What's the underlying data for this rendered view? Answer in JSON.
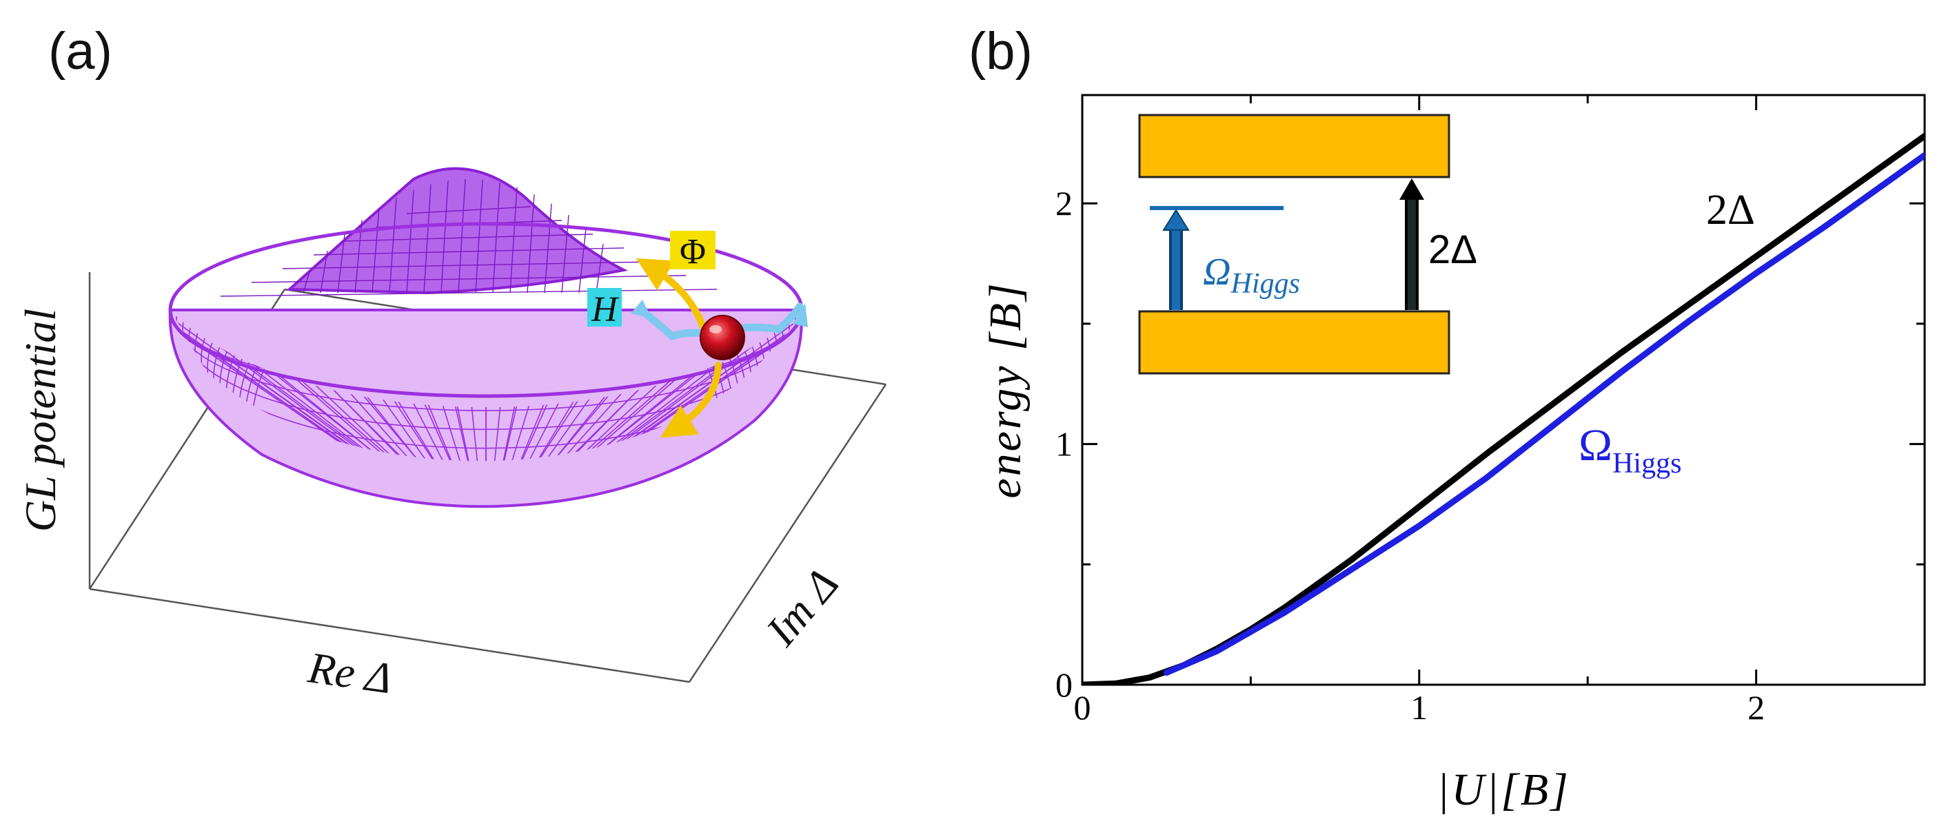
{
  "panel_a": {
    "label": "(a)",
    "z_axis_label": "GL potential",
    "x_axis_label": "Re Δ",
    "y_axis_label": "Im Δ",
    "phase_mode_label": "Φ",
    "amplitude_mode_label": "H",
    "colors": {
      "surface": "#9b30e0",
      "phase_arrow": "#f5c400",
      "phase_label_bg": "#f5e000",
      "amplitude_arrow": "#7fc8ee",
      "amplitude_label_bg": "#39d6e6",
      "ball": "#c8101a"
    }
  },
  "panel_b": {
    "label": "(b)",
    "inset": {
      "gap_label": "2Δ",
      "higgs_label_main": "Ω",
      "higgs_label_sub": "Higgs",
      "colors": {
        "band": "#ffbb00",
        "higgs": "#1a6db4",
        "gap_arrow": "#000000"
      }
    }
  },
  "chart_data": {
    "type": "line",
    "title": "",
    "xlabel": "|U|[B]",
    "ylabel": "energy [B]",
    "xlim": [
      0,
      2.5
    ],
    "ylim": [
      0,
      2.45
    ],
    "x_ticks": [
      0,
      1,
      2
    ],
    "y_ticks": [
      0,
      1,
      2
    ],
    "x_tick_labels": [
      "0",
      "1",
      "2"
    ],
    "y_tick_labels": [
      "0",
      "1",
      "2"
    ],
    "grid": false,
    "series": [
      {
        "name": "2Δ",
        "label_main": "2Δ",
        "label_sub": "",
        "color": "#000000",
        "x": [
          0,
          0.1,
          0.2,
          0.3,
          0.4,
          0.5,
          0.6,
          0.7,
          0.8,
          0.9,
          1.0,
          1.2,
          1.4,
          1.6,
          1.8,
          2.0,
          2.2,
          2.4,
          2.5
        ],
        "y": [
          0,
          0.005,
          0.03,
          0.08,
          0.15,
          0.23,
          0.32,
          0.42,
          0.52,
          0.63,
          0.74,
          0.96,
          1.17,
          1.38,
          1.58,
          1.78,
          1.98,
          2.18,
          2.28
        ]
      },
      {
        "name": "Ω_Higgs",
        "label_main": "Ω",
        "label_sub": "Higgs",
        "color": "#1f1fe0",
        "x": [
          0.25,
          0.3,
          0.4,
          0.5,
          0.6,
          0.7,
          0.8,
          0.9,
          1.0,
          1.2,
          1.4,
          1.6,
          1.8,
          2.0,
          2.2,
          2.4,
          2.5
        ],
        "y": [
          0.05,
          0.08,
          0.14,
          0.22,
          0.3,
          0.39,
          0.48,
          0.57,
          0.66,
          0.86,
          1.08,
          1.3,
          1.51,
          1.71,
          1.9,
          2.1,
          2.2
        ]
      }
    ]
  }
}
